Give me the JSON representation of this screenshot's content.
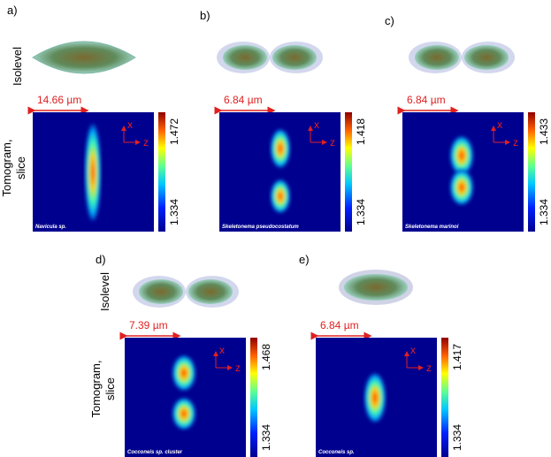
{
  "row_labels": {
    "isolevel": "Isolevel",
    "tomogram": "Tomogram,",
    "slice": "slice"
  },
  "axes": {
    "x": "x",
    "z": "z"
  },
  "panels": [
    {
      "label": "a)",
      "scale": "14.66 µm",
      "cmax": "1.472",
      "cmin": "1.334",
      "species": "Navicula sp."
    },
    {
      "label": "b)",
      "scale": "6.84 µm",
      "cmax": "1.418",
      "cmin": "1.334",
      "species": "Skeletonema pseudocostatum"
    },
    {
      "label": "c)",
      "scale": "6.84 µm",
      "cmax": "1.433",
      "cmin": "1.334",
      "species": "Skeletonema marinoi"
    },
    {
      "label": "d)",
      "scale": "7.39 µm",
      "cmax": "1.468",
      "cmin": "1.334",
      "species": "Cocconeis sp. cluster"
    },
    {
      "label": "e)",
      "scale": "6.84 µm",
      "cmax": "1.417",
      "cmin": "1.334",
      "species": "Cocconeis sp."
    }
  ]
}
